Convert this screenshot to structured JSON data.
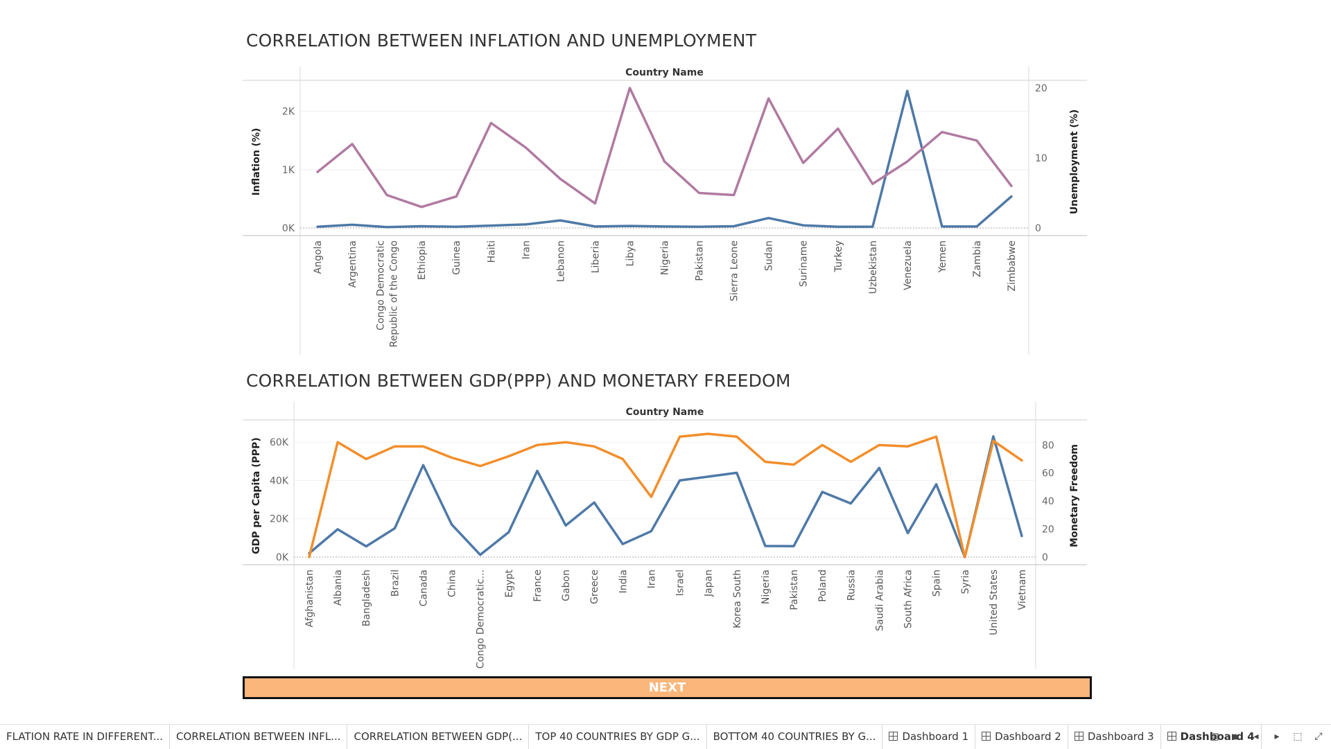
{
  "charts": {
    "top": {
      "title": "CORRELATION BETWEEN INFLATION AND UNEMPLOYMENT",
      "header": "Country Name",
      "left_axis_label": "Inflation (%)",
      "right_axis_label": "Unemployment (%)",
      "left_ticks": [
        "0K",
        "1K",
        "2K"
      ],
      "right_ticks": [
        "0",
        "10",
        "20"
      ]
    },
    "bottom": {
      "title": "CORRELATION BETWEEN GDP(PPP) AND MONETARY FREEDOM",
      "header": "Country Name",
      "left_axis_label": "GDP per Capita (PPP)",
      "right_axis_label": "Monetary Freedom",
      "left_ticks": [
        "0K",
        "20K",
        "40K",
        "60K"
      ],
      "right_ticks": [
        "0",
        "20",
        "40",
        "60",
        "80"
      ]
    }
  },
  "chart_data": [
    {
      "type": "line",
      "title": "CORRELATION BETWEEN INFLATION AND UNEMPLOYMENT",
      "xlabel": "Country Name",
      "categories": [
        "Angola",
        "Argentina",
        "Congo Democratic Republic of the Congo",
        "Ethiopia",
        "Guinea",
        "Haiti",
        "Iran",
        "Lebanon",
        "Liberia",
        "Libya",
        "Nigeria",
        "Pakistan",
        "Sierra Leone",
        "Sudan",
        "Suriname",
        "Turkey",
        "Uzbekistan",
        "Venezuela",
        "Yemen",
        "Zambia",
        "Zimbabwe"
      ],
      "category_lines": [
        [
          "Angola"
        ],
        [
          "Argentina"
        ],
        [
          "Congo Democratic",
          "Republic of the Congo"
        ],
        [
          "Ethiopia"
        ],
        [
          "Guinea"
        ],
        [
          "Haiti"
        ],
        [
          "Iran"
        ],
        [
          "Lebanon"
        ],
        [
          "Liberia"
        ],
        [
          "Libya"
        ],
        [
          "Nigeria"
        ],
        [
          "Pakistan"
        ],
        [
          "Sierra Leone"
        ],
        [
          "Sudan"
        ],
        [
          "Suriname"
        ],
        [
          "Turkey"
        ],
        [
          "Uzbekistan"
        ],
        [
          "Venezuela"
        ],
        [
          "Yemen"
        ],
        [
          "Zambia"
        ],
        [
          "Zimbabwe"
        ]
      ],
      "series": [
        {
          "name": "Inflation (%)",
          "axis": "left",
          "color": "#4e79a7",
          "values": [
            20,
            55,
            15,
            30,
            20,
            40,
            60,
            130,
            25,
            35,
            25,
            20,
            30,
            170,
            45,
            20,
            20,
            2350,
            25,
            25,
            540
          ]
        },
        {
          "name": "Unemployment (%)",
          "axis": "right",
          "color": "#b07aa1",
          "values": [
            8,
            12,
            4.7,
            3,
            4.5,
            15,
            11.5,
            7,
            3.5,
            20,
            9.5,
            5,
            4.7,
            18.5,
            9.3,
            14.2,
            6.3,
            9.5,
            13.7,
            12.5,
            6
          ]
        }
      ],
      "ylim_left": [
        0,
        2400
      ],
      "ylim_right": [
        0,
        20
      ],
      "grid": true
    },
    {
      "type": "line",
      "title": "CORRELATION BETWEEN GDP(PPP) AND MONETARY FREEDOM",
      "xlabel": "Country Name",
      "categories": [
        "Afghanistan",
        "Albania",
        "Bangladesh",
        "Brazil",
        "Canada",
        "China",
        "Congo Democratic...",
        "Egypt",
        "France",
        "Gabon",
        "Greece",
        "India",
        "Iran",
        "Israel",
        "Japan",
        "Korea South",
        "Nigeria",
        "Pakistan",
        "Poland",
        "Russia",
        "Saudi Arabia",
        "South Africa",
        "Spain",
        "Syria",
        "United States",
        "Vietnam"
      ],
      "series": [
        {
          "name": "GDP per Capita (PPP)",
          "axis": "left",
          "color": "#4e79a7",
          "values": [
            2000,
            14500,
            5600,
            15000,
            48000,
            17000,
            1200,
            13000,
            45000,
            16500,
            28500,
            6800,
            13500,
            40000,
            42000,
            44000,
            5800,
            5700,
            34000,
            28000,
            46500,
            12500,
            38000,
            0,
            63000,
            11000
          ]
        },
        {
          "name": "Monetary Freedom",
          "axis": "right",
          "color": "#f28e2b",
          "values": [
            0,
            82,
            70,
            79,
            79,
            71,
            65,
            72,
            80,
            82,
            79,
            70,
            43,
            86,
            88,
            86,
            68,
            66,
            80,
            68,
            80,
            79,
            86,
            0,
            83,
            69
          ]
        }
      ],
      "ylim_left": [
        0,
        68000
      ],
      "ylim_right": [
        0,
        93
      ],
      "grid": true
    }
  ],
  "next_button": {
    "label": "NEXT",
    "color": "#fbb77b"
  },
  "tabs": [
    {
      "label": "FLATION RATE IN DIFFERENT...",
      "type": "sheet",
      "active": false
    },
    {
      "label": "CORRELATION BETWEEN INFL...",
      "type": "sheet",
      "active": false
    },
    {
      "label": "CORRELATION BETWEEN GDP(...",
      "type": "sheet",
      "active": false
    },
    {
      "label": "TOP 40 COUNTRIES BY GDP G...",
      "type": "sheet",
      "active": false
    },
    {
      "label": "BOTTOM 40 COUNTRIES BY G...",
      "type": "sheet",
      "active": false
    },
    {
      "label": "Dashboard 1",
      "type": "dashboard",
      "active": false
    },
    {
      "label": "Dashboard 2",
      "type": "dashboard",
      "active": false
    },
    {
      "label": "Dashboard 3",
      "type": "dashboard",
      "active": false
    },
    {
      "label": "Dashboard 4",
      "type": "dashboard",
      "active": true
    }
  ],
  "tab_tools": [
    "grid-view-icon",
    "filmstrip-icon",
    "prev-icon",
    "next-icon",
    "fit-icon",
    "present-icon"
  ]
}
